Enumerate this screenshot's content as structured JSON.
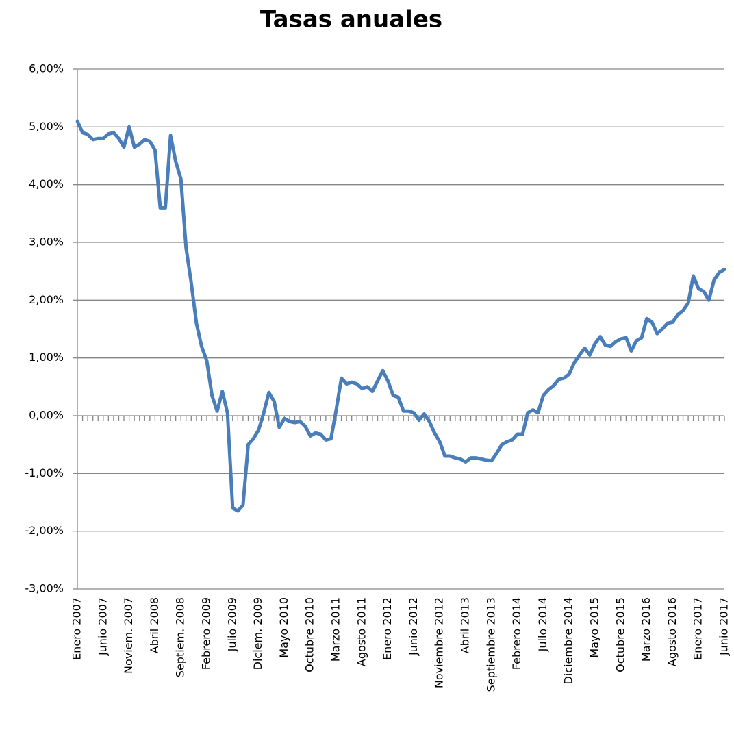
{
  "chart_data": {
    "type": "line",
    "title": "Tasas anuales",
    "categories": [
      "Enero 2007",
      null,
      null,
      null,
      null,
      "Junio 2007",
      null,
      null,
      null,
      null,
      "Noviem. 2007",
      null,
      null,
      null,
      null,
      "Abril 2008",
      null,
      null,
      null,
      null,
      "Septiem. 2008",
      null,
      null,
      null,
      null,
      "Febrero 2009",
      null,
      null,
      null,
      null,
      "Julio 2009",
      null,
      null,
      null,
      null,
      "Diciem. 2009",
      null,
      null,
      null,
      null,
      "Mayo 2010",
      null,
      null,
      null,
      null,
      "Octubre 2010",
      null,
      null,
      null,
      null,
      "Marzo 2011",
      null,
      null,
      null,
      null,
      "Agosto 2011",
      null,
      null,
      null,
      null,
      "Enero 2012",
      null,
      null,
      null,
      null,
      "Junio 2012",
      null,
      null,
      null,
      null,
      "Noviembre 2012",
      null,
      null,
      null,
      null,
      "Abril 2013",
      null,
      null,
      null,
      null,
      "Septiembre 2013",
      null,
      null,
      null,
      null,
      "Febrero 2014",
      null,
      null,
      null,
      null,
      "Julio 2014",
      null,
      null,
      null,
      null,
      "Diciembre 2014",
      null,
      null,
      null,
      null,
      "Mayo 2015",
      null,
      null,
      null,
      null,
      "Octubre 2015",
      null,
      null,
      null,
      null,
      "Marzo 2016",
      null,
      null,
      null,
      null,
      "Agosto 2016",
      null,
      null,
      null,
      null,
      "Enero 2017",
      null,
      null,
      null,
      null,
      "Junio 2017"
    ],
    "series": [
      {
        "color": "#4a7ebb",
        "values": [
          5.1,
          4.9,
          4.87,
          4.78,
          4.8,
          4.8,
          4.88,
          4.9,
          4.8,
          4.65,
          5.0,
          4.65,
          4.7,
          4.78,
          4.75,
          4.6,
          3.6,
          3.6,
          4.85,
          4.4,
          4.1,
          2.9,
          2.3,
          1.6,
          1.2,
          0.95,
          0.35,
          0.08,
          0.42,
          0.05,
          -1.6,
          -1.65,
          -1.55,
          -0.5,
          -0.4,
          -0.25,
          0.05,
          0.4,
          0.25,
          -0.2,
          -0.05,
          -0.1,
          -0.12,
          -0.1,
          -0.18,
          -0.35,
          -0.3,
          -0.32,
          -0.42,
          -0.4,
          0.1,
          0.65,
          0.55,
          0.58,
          0.55,
          0.47,
          0.5,
          0.42,
          0.6,
          0.78,
          0.6,
          0.35,
          0.32,
          0.08,
          0.08,
          0.05,
          -0.08,
          0.03,
          -0.1,
          -0.3,
          -0.45,
          -0.7,
          -0.7,
          -0.73,
          -0.75,
          -0.8,
          -0.73,
          -0.73,
          -0.75,
          -0.77,
          -0.78,
          -0.65,
          -0.5,
          -0.45,
          -0.42,
          -0.32,
          -0.32,
          0.05,
          0.1,
          0.05,
          0.35,
          0.45,
          0.52,
          0.63,
          0.65,
          0.72,
          0.92,
          1.05,
          1.17,
          1.05,
          1.25,
          1.37,
          1.22,
          1.2,
          1.28,
          1.33,
          1.35,
          1.12,
          1.3,
          1.35,
          1.68,
          1.62,
          1.42,
          1.5,
          1.6,
          1.62,
          1.75,
          1.82,
          1.95,
          2.42,
          2.2,
          2.15,
          2.0,
          2.35,
          2.48,
          2.53
        ]
      }
    ],
    "ylim": [
      -3,
      6
    ],
    "yticks": [
      {
        "value": -3,
        "label": "-3,00%"
      },
      {
        "value": -2,
        "label": "-2,00%"
      },
      {
        "value": -1,
        "label": "-1,00%"
      },
      {
        "value": 0,
        "label": "0,00%"
      },
      {
        "value": 1,
        "label": "1,00%"
      },
      {
        "value": 2,
        "label": "2,00%"
      },
      {
        "value": 3,
        "label": "3,00%"
      },
      {
        "value": 4,
        "label": "4,00%"
      },
      {
        "value": 5,
        "label": "5,00%"
      },
      {
        "value": 6,
        "label": "6,00%"
      }
    ],
    "grid": true
  }
}
